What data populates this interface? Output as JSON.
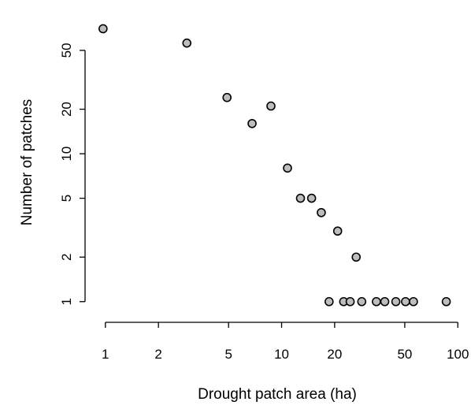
{
  "chart_data": {
    "type": "scatter",
    "title": "",
    "xlabel": "Drought patch area (ha)",
    "ylabel": "Number of patches",
    "x_scale": "log",
    "y_scale": "log",
    "xlim": [
      0.85,
      105
    ],
    "ylim": [
      0.85,
      90
    ],
    "x_ticks": [
      1,
      2,
      5,
      10,
      20,
      50,
      100
    ],
    "x_tick_labels": [
      "1",
      "2",
      "5",
      "10",
      "20",
      "50",
      "100"
    ],
    "y_ticks": [
      1,
      2,
      5,
      10,
      20,
      50
    ],
    "y_tick_labels": [
      "1",
      "2",
      "5",
      "10",
      "20",
      "50"
    ],
    "grid": false,
    "marker": {
      "shape": "circle",
      "fill": "#bdbdbd",
      "stroke": "#000000"
    },
    "points": [
      {
        "x": 0.97,
        "y": 70
      },
      {
        "x": 2.9,
        "y": 56
      },
      {
        "x": 4.9,
        "y": 24
      },
      {
        "x": 6.8,
        "y": 16
      },
      {
        "x": 8.7,
        "y": 21
      },
      {
        "x": 10.8,
        "y": 8
      },
      {
        "x": 12.8,
        "y": 5
      },
      {
        "x": 14.8,
        "y": 5
      },
      {
        "x": 16.8,
        "y": 4
      },
      {
        "x": 18.6,
        "y": 1
      },
      {
        "x": 20.8,
        "y": 3
      },
      {
        "x": 22.5,
        "y": 1
      },
      {
        "x": 24.5,
        "y": 1
      },
      {
        "x": 26.5,
        "y": 2
      },
      {
        "x": 28.5,
        "y": 1
      },
      {
        "x": 34.5,
        "y": 1
      },
      {
        "x": 38.5,
        "y": 1
      },
      {
        "x": 44.5,
        "y": 1
      },
      {
        "x": 50.5,
        "y": 1
      },
      {
        "x": 56,
        "y": 1
      },
      {
        "x": 86,
        "y": 1
      }
    ]
  }
}
